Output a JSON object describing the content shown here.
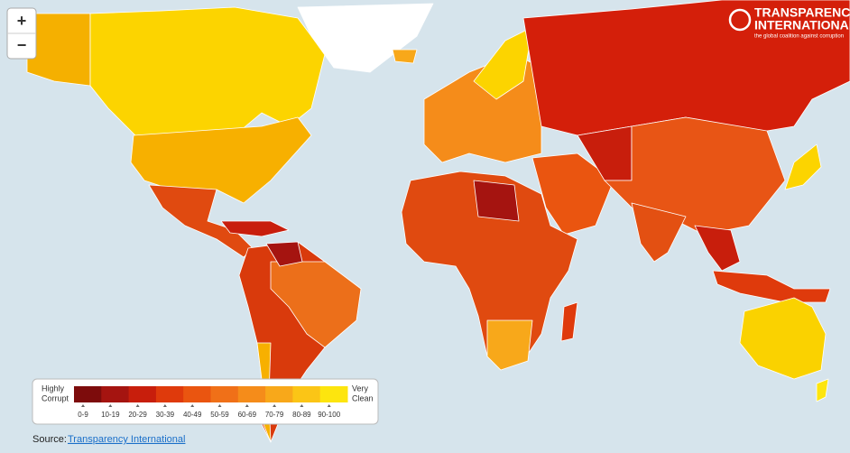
{
  "zoom": {
    "in": "+",
    "out": "−"
  },
  "logo": {
    "line1": "TRANSPARENCY",
    "line2": "INTERNATIONAL",
    "tagline": "the global coalition against corruption"
  },
  "legend": {
    "low_label": [
      "Highly",
      "Corrupt"
    ],
    "high_label": [
      "Very",
      "Clean"
    ],
    "bins": [
      {
        "label": "0-9",
        "color": "#7d0c0c"
      },
      {
        "label": "10-19",
        "color": "#a51410"
      },
      {
        "label": "20-29",
        "color": "#c81e0c"
      },
      {
        "label": "30-39",
        "color": "#df3a0c"
      },
      {
        "label": "40-49",
        "color": "#ea5510"
      },
      {
        "label": "50-59",
        "color": "#f07018"
      },
      {
        "label": "60-69",
        "color": "#f58c1a"
      },
      {
        "label": "70-79",
        "color": "#f8a81a"
      },
      {
        "label": "80-89",
        "color": "#fbc516"
      },
      {
        "label": "90-100",
        "color": "#fde50e"
      }
    ]
  },
  "source": {
    "prefix": "Source:",
    "link": "Transparency International"
  }
}
